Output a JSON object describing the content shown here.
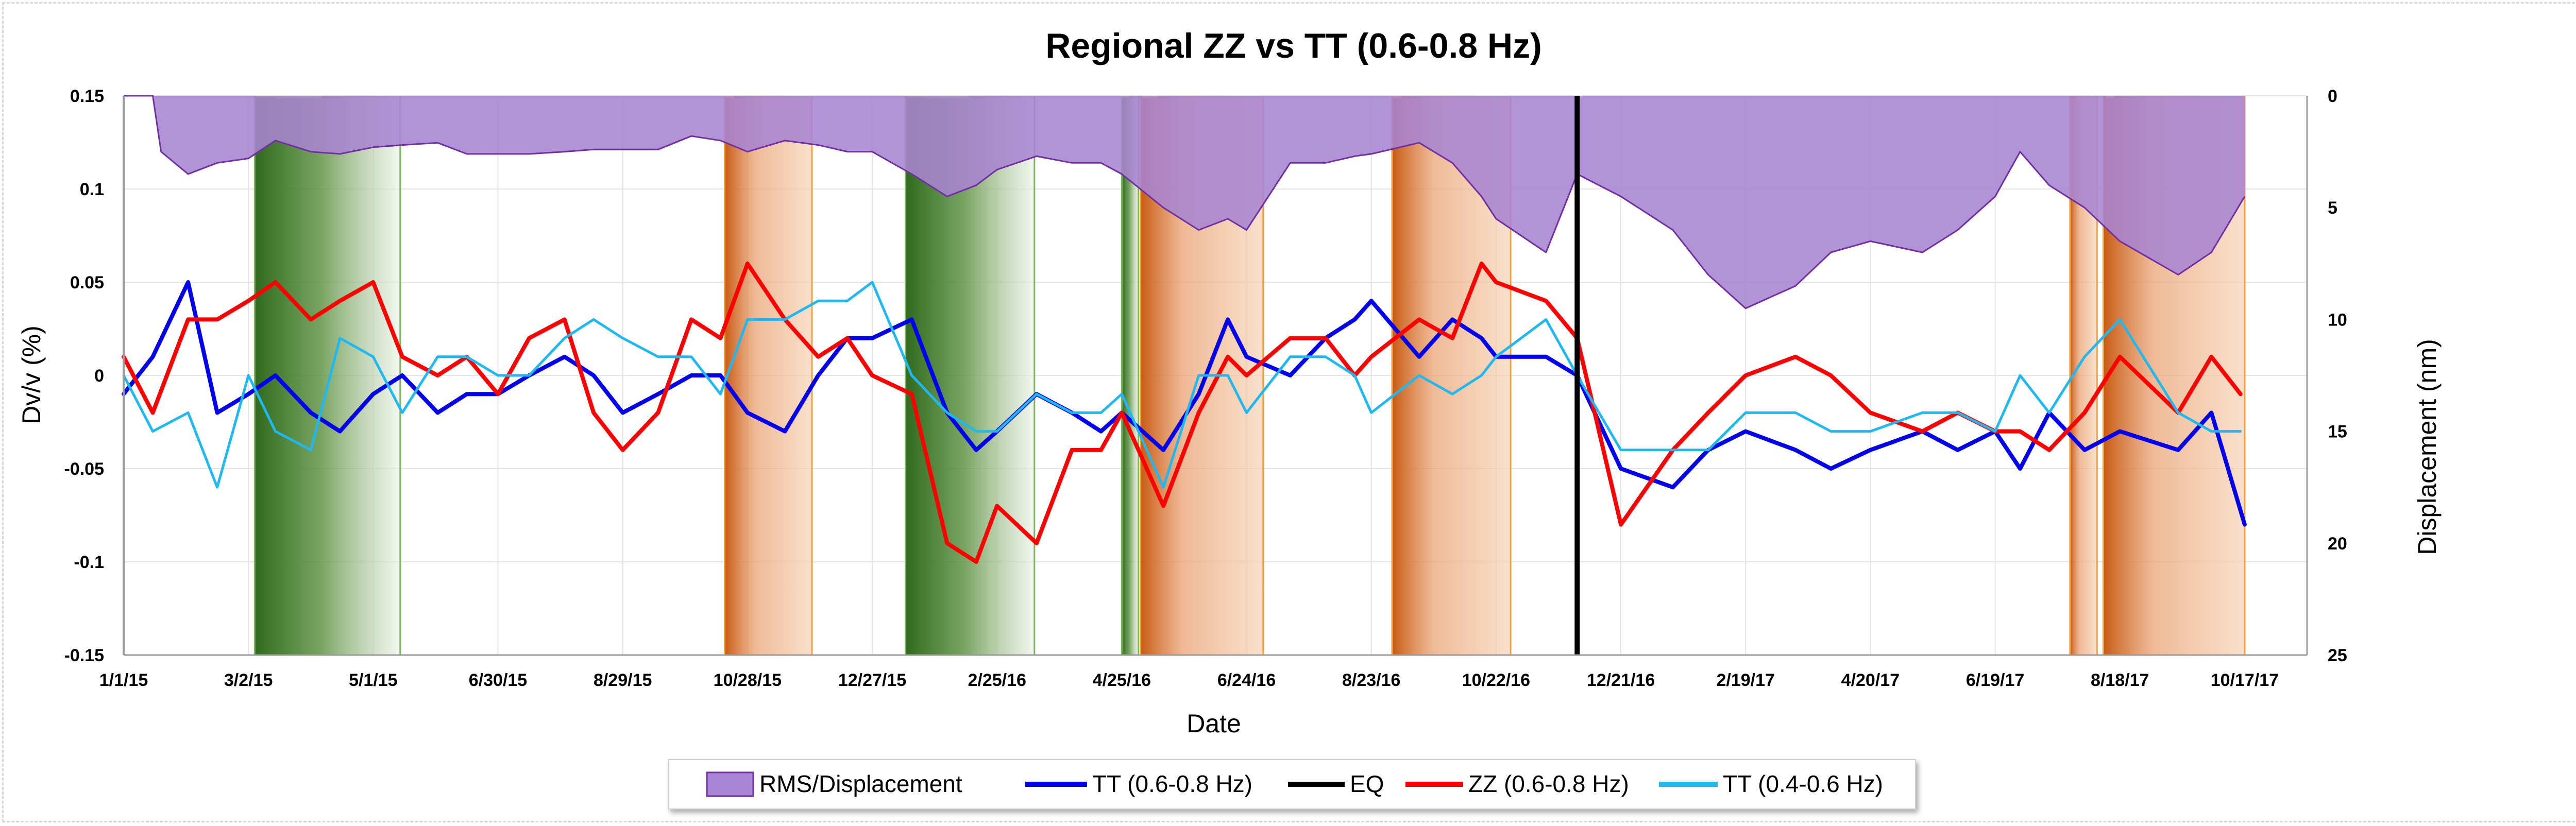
{
  "chart_data": {
    "type": "line",
    "title": "Regional ZZ vs TT (0.6-0.8 Hz)",
    "xlabel": "Date",
    "ylabel": "Dv/v (%)",
    "y2label": "Displacement (nm)",
    "ylim": [
      -0.15,
      0.15
    ],
    "y2lim": [
      0,
      25
    ],
    "y2_inverted": true,
    "y_ticks": [
      "0.15",
      "0.1",
      "0.05",
      "0",
      "-0.05",
      "-0.1",
      "-0.15"
    ],
    "y2_ticks": [
      "0",
      "5",
      "10",
      "15",
      "20",
      "25"
    ],
    "x_ticks": [
      "1/1/15",
      "3/2/15",
      "5/1/15",
      "6/30/15",
      "8/29/15",
      "10/28/15",
      "12/27/15",
      "2/25/16",
      "4/25/16",
      "6/24/16",
      "8/23/16",
      "10/22/16",
      "12/21/16",
      "2/19/17",
      "4/20/17",
      "6/19/17",
      "8/18/17",
      "10/17/17"
    ],
    "x_range_days": [
      0,
      1050
    ],
    "grid": true,
    "legend_position": "bottom",
    "legend": [
      "RMS/Displacement",
      "TT (0.6-0.8 Hz)",
      "EQ",
      "ZZ (0.6-0.8 Hz)",
      "TT (0.4-0.6 Hz)"
    ],
    "colors": {
      "rms_fill": "#a884d2",
      "rms_line": "#7030a0",
      "tt_high": "#0000ee",
      "zz": "#ff0000",
      "tt_low": "#1fb8f0",
      "eq": "#000000",
      "green_band": "#3f7a2a",
      "orange_band": "#d86a1c"
    },
    "eq_date": "11/30/16",
    "green_bands": [
      {
        "start": "3/5/15",
        "end": "5/14/15"
      },
      {
        "start": "1/12/16",
        "end": "3/14/16"
      },
      {
        "start": "4/25/16",
        "end": "5/3/16"
      }
    ],
    "orange_bands": [
      {
        "start": "10/17/15",
        "end": "11/28/15"
      },
      {
        "start": "5/4/16",
        "end": "7/2/16"
      },
      {
        "start": "9/2/16",
        "end": "10/29/16"
      },
      {
        "start": "7/25/17",
        "end": "8/7/17"
      },
      {
        "start": "8/10/17",
        "end": "10/17/17"
      }
    ],
    "series": [
      {
        "name": "RMS/Displacement",
        "axis": "right",
        "style": "area",
        "x": [
          "1/1/15",
          "1/15/15",
          "1/19/15",
          "2/1/15",
          "2/15/15",
          "3/2/15",
          "3/15/15",
          "4/1/15",
          "4/15/15",
          "5/1/15",
          "5/15/15",
          "6/1/15",
          "6/15/15",
          "6/30/15",
          "7/15/15",
          "8/1/15",
          "8/15/15",
          "8/29/15",
          "9/15/15",
          "10/1/15",
          "10/15/15",
          "10/28/15",
          "11/15/15",
          "12/1/15",
          "12/15/15",
          "12/27/15",
          "1/15/16",
          "2/1/16",
          "2/15/16",
          "2/25/16",
          "3/15/16",
          "4/1/16",
          "4/15/16",
          "4/25/16",
          "5/15/16",
          "6/1/16",
          "6/15/16",
          "6/24/16",
          "7/15/16",
          "8/1/16",
          "8/15/16",
          "8/23/16",
          "9/15/16",
          "10/1/16",
          "10/15/16",
          "10/22/16",
          "11/15/16",
          "11/30/16",
          "12/21/16",
          "1/15/17",
          "2/1/17",
          "2/19/17",
          "3/15/17",
          "4/1/17",
          "4/20/17",
          "5/15/17",
          "6/1/17",
          "6/19/17",
          "7/1/17",
          "7/15/17",
          "8/1/17",
          "8/18/17",
          "9/15/17",
          "10/1/17",
          "10/17/17"
        ],
        "values": [
          0,
          0,
          2.5,
          3.5,
          3,
          2.8,
          2,
          2.5,
          2.6,
          2.3,
          2.2,
          2.1,
          2.6,
          2.6,
          2.6,
          2.5,
          2.4,
          2.4,
          2.4,
          1.8,
          2,
          2.5,
          2,
          2.2,
          2.5,
          2.5,
          3.5,
          4.5,
          4,
          3.3,
          2.7,
          3,
          3,
          3.5,
          5,
          6,
          5.5,
          6,
          3,
          3,
          2.7,
          2.6,
          2.1,
          3,
          4.5,
          5.5,
          7,
          3.5,
          4.5,
          6,
          8,
          9.5,
          8.5,
          7,
          6.5,
          7,
          6,
          4.5,
          2.5,
          4,
          5,
          6.5,
          8,
          7,
          4.5
        ]
      },
      {
        "name": "TT (0.6-0.8 Hz)",
        "axis": "left",
        "style": "line",
        "x": [
          "1/1/15",
          "1/15/15",
          "2/1/15",
          "2/15/15",
          "3/2/15",
          "3/15/15",
          "4/1/15",
          "4/15/15",
          "5/1/15",
          "5/15/15",
          "6/1/15",
          "6/15/15",
          "6/30/15",
          "7/15/15",
          "8/1/15",
          "8/15/15",
          "8/29/15",
          "9/15/15",
          "10/1/15",
          "10/15/15",
          "10/28/15",
          "11/15/15",
          "12/1/15",
          "12/15/15",
          "12/27/15",
          "1/15/16",
          "2/1/16",
          "2/15/16",
          "2/25/16",
          "3/15/16",
          "4/1/16",
          "4/15/16",
          "4/25/16",
          "5/15/16",
          "6/1/16",
          "6/15/16",
          "6/24/16",
          "7/15/16",
          "8/1/16",
          "8/15/16",
          "8/23/16",
          "9/15/16",
          "10/1/16",
          "10/15/16",
          "10/22/16",
          "11/15/16",
          "11/30/16",
          "12/21/16",
          "1/15/17",
          "2/1/17",
          "2/19/17",
          "3/15/17",
          "4/1/17",
          "4/20/17",
          "5/15/17",
          "6/1/17",
          "6/19/17",
          "7/1/17",
          "7/15/17",
          "8/1/17",
          "8/18/17",
          "9/15/17",
          "10/1/17",
          "10/17/17"
        ],
        "values": [
          -0.01,
          0.01,
          0.05,
          -0.02,
          -0.01,
          0,
          -0.02,
          -0.03,
          -0.01,
          0,
          -0.02,
          -0.01,
          -0.01,
          0,
          0.01,
          0,
          -0.02,
          -0.01,
          0,
          0,
          -0.02,
          -0.03,
          0,
          0.02,
          0.02,
          0.03,
          -0.02,
          -0.04,
          -0.03,
          -0.01,
          -0.02,
          -0.03,
          -0.02,
          -0.04,
          -0.01,
          0.03,
          0.01,
          0,
          0.02,
          0.03,
          0.04,
          0.01,
          0.03,
          0.02,
          0.01,
          0.01,
          0,
          -0.05,
          -0.06,
          -0.04,
          -0.03,
          -0.04,
          -0.05,
          -0.04,
          -0.03,
          -0.04,
          -0.03,
          -0.05,
          -0.02,
          -0.04,
          -0.03,
          -0.04,
          -0.02,
          -0.08
        ]
      },
      {
        "name": "ZZ (0.6-0.8 Hz)",
        "axis": "left",
        "style": "line",
        "x": [
          "1/1/15",
          "1/15/15",
          "2/1/15",
          "2/15/15",
          "3/2/15",
          "3/15/15",
          "4/1/15",
          "4/15/15",
          "5/1/15",
          "5/15/15",
          "6/1/15",
          "6/15/15",
          "6/30/15",
          "7/15/15",
          "8/1/15",
          "8/15/15",
          "8/29/15",
          "9/15/15",
          "10/1/15",
          "10/15/15",
          "10/28/15",
          "11/15/15",
          "12/1/15",
          "12/15/15",
          "12/27/15",
          "1/15/16",
          "2/1/16",
          "2/15/16",
          "2/25/16",
          "3/15/16",
          "4/1/16",
          "4/15/16",
          "4/25/16",
          "5/15/16",
          "6/1/16",
          "6/15/16",
          "6/24/16",
          "7/15/16",
          "8/1/16",
          "8/15/16",
          "8/23/16",
          "9/15/16",
          "10/1/16",
          "10/15/16",
          "10/22/16",
          "11/15/16",
          "11/30/16",
          "12/21/16",
          "1/15/17",
          "2/1/17",
          "2/19/17",
          "3/15/17",
          "4/1/17",
          "4/20/17",
          "5/15/17",
          "6/1/17",
          "6/19/17",
          "7/1/17",
          "7/15/17",
          "8/1/17",
          "8/18/17",
          "9/15/17",
          "10/1/17",
          "10/15/17"
        ],
        "values": [
          0.01,
          -0.02,
          0.03,
          0.03,
          0.04,
          0.05,
          0.03,
          0.04,
          0.05,
          0.01,
          0,
          0.01,
          -0.01,
          0.02,
          0.03,
          -0.02,
          -0.04,
          -0.02,
          0.03,
          0.02,
          0.06,
          0.03,
          0.01,
          0.02,
          0,
          -0.01,
          -0.09,
          -0.1,
          -0.07,
          -0.09,
          -0.04,
          -0.04,
          -0.02,
          -0.07,
          -0.02,
          0.01,
          0,
          0.02,
          0.02,
          0,
          0.01,
          0.03,
          0.02,
          0.06,
          0.05,
          0.04,
          0.02,
          -0.08,
          -0.04,
          -0.02,
          0,
          0.01,
          0,
          -0.02,
          -0.03,
          -0.02,
          -0.03,
          -0.03,
          -0.04,
          -0.02,
          0.01,
          -0.02,
          0.01,
          -0.01
        ]
      },
      {
        "name": "TT (0.4-0.6 Hz)",
        "axis": "left",
        "style": "line",
        "x": [
          "1/1/15",
          "1/15/15",
          "2/1/15",
          "2/15/15",
          "3/2/15",
          "3/15/15",
          "4/1/15",
          "4/15/15",
          "5/1/15",
          "5/15/15",
          "6/1/15",
          "6/15/15",
          "6/30/15",
          "7/15/15",
          "8/1/15",
          "8/15/15",
          "8/29/15",
          "9/15/15",
          "10/1/15",
          "10/15/15",
          "10/28/15",
          "11/15/15",
          "12/1/15",
          "12/15/15",
          "12/27/15",
          "1/15/16",
          "2/1/16",
          "2/15/16",
          "2/25/16",
          "3/15/16",
          "4/1/16",
          "4/15/16",
          "4/25/16",
          "5/15/16",
          "6/1/16",
          "6/15/16",
          "6/24/16",
          "7/15/16",
          "8/1/16",
          "8/15/16",
          "8/23/16",
          "9/15/16",
          "10/1/16",
          "10/15/16",
          "10/22/16",
          "11/15/16",
          "11/30/16",
          "12/21/16",
          "1/15/17",
          "2/1/17",
          "2/19/17",
          "3/15/17",
          "4/1/17",
          "4/20/17",
          "5/15/17",
          "6/1/17",
          "6/19/17",
          "7/1/17",
          "7/15/17",
          "8/1/17",
          "8/18/17",
          "9/15/17",
          "10/1/17",
          "10/15/17"
        ],
        "values": [
          0,
          -0.03,
          -0.02,
          -0.06,
          0,
          -0.03,
          -0.04,
          0.02,
          0.01,
          -0.02,
          0.01,
          0.01,
          0,
          0,
          0.02,
          0.03,
          0.02,
          0.01,
          0.01,
          -0.01,
          0.03,
          0.03,
          0.04,
          0.04,
          0.05,
          0,
          -0.02,
          -0.03,
          -0.03,
          -0.01,
          -0.02,
          -0.02,
          -0.01,
          -0.06,
          0,
          0,
          -0.02,
          0.01,
          0.01,
          0,
          -0.02,
          0,
          -0.01,
          0,
          0.01,
          0.03,
          0,
          -0.04,
          -0.04,
          -0.04,
          -0.02,
          -0.02,
          -0.03,
          -0.03,
          -0.02,
          -0.02,
          -0.03,
          0,
          -0.02,
          0.01,
          0.03,
          -0.02,
          -0.03,
          -0.03
        ]
      }
    ]
  }
}
